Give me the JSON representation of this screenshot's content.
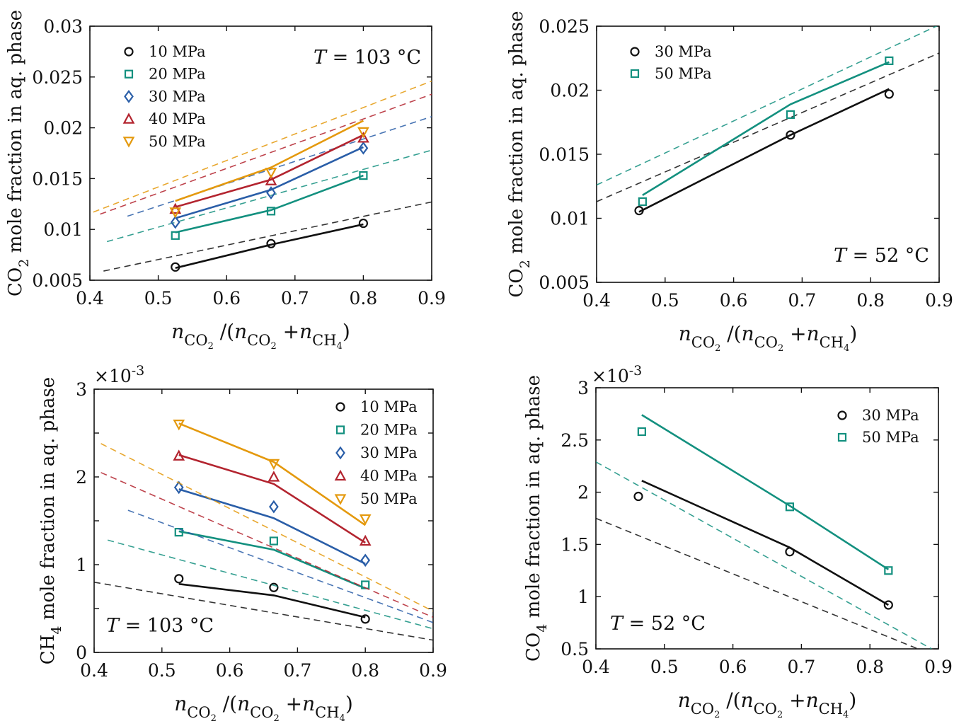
{
  "colors": {
    "10 MPa": "#111111",
    "20 MPa": "#13907f",
    "30 MPa": "#2a5ea8",
    "40 MPa": "#b3242f",
    "50 MPa": "#e4990d"
  },
  "chart_data": [
    {
      "id": "co2-103",
      "type": "line",
      "ylabel": "CO2 mole fraction in aq. phase",
      "ylabel_parts": {
        "pre": "CO",
        "sub": "2",
        "post": " mole fraction in aq. phase"
      },
      "xlabel": "nCO2/(nCO2+nCH4)",
      "xlim": [
        0.4,
        0.9
      ],
      "ylim": [
        0.005,
        0.03
      ],
      "xticks": [
        "0.4",
        "0.5",
        "0.6",
        "0.7",
        "0.8",
        "0.9"
      ],
      "yticks": [
        "0.005",
        "0.01",
        "0.015",
        "0.02",
        "0.025",
        "0.03"
      ],
      "multiplier": "",
      "annotation": "T = 103 °C",
      "legend_position": "top-left",
      "series": [
        {
          "name": "10 MPa",
          "color": "#111111",
          "marker": "circle",
          "points": [
            [
              0.525,
              0.0063
            ],
            [
              0.665,
              0.0086
            ],
            [
              0.8,
              0.0106
            ]
          ],
          "model": [
            [
              0.525,
              0.0062
            ],
            [
              0.665,
              0.0085
            ],
            [
              0.8,
              0.0105
            ]
          ],
          "dashed": [
            [
              0.42,
              0.0059
            ],
            [
              0.9,
              0.0127
            ]
          ]
        },
        {
          "name": "20 MPa",
          "color": "#13907f",
          "marker": "square",
          "points": [
            [
              0.525,
              0.0094
            ],
            [
              0.665,
              0.0118
            ],
            [
              0.8,
              0.0153
            ]
          ],
          "model": [
            [
              0.525,
              0.0097
            ],
            [
              0.665,
              0.0119
            ],
            [
              0.8,
              0.0153
            ]
          ],
          "dashed": [
            [
              0.425,
              0.0088
            ],
            [
              0.9,
              0.0178
            ]
          ]
        },
        {
          "name": "30 MPa",
          "color": "#2a5ea8",
          "marker": "diamond",
          "points": [
            [
              0.525,
              0.0107
            ],
            [
              0.665,
              0.0136
            ],
            [
              0.8,
              0.018
            ]
          ],
          "model": [
            [
              0.525,
              0.0111
            ],
            [
              0.665,
              0.0139
            ],
            [
              0.8,
              0.0181
            ]
          ],
          "dashed": [
            [
              0.455,
              0.0113
            ],
            [
              0.9,
              0.0211
            ]
          ]
        },
        {
          "name": "40 MPa",
          "color": "#b3242f",
          "marker": "triangle-up",
          "points": [
            [
              0.525,
              0.012
            ],
            [
              0.665,
              0.0148
            ],
            [
              0.8,
              0.019
            ]
          ],
          "model": [
            [
              0.525,
              0.0122
            ],
            [
              0.665,
              0.0149
            ],
            [
              0.8,
              0.0193
            ]
          ],
          "dashed": [
            [
              0.415,
              0.0115
            ],
            [
              0.9,
              0.0233
            ]
          ]
        },
        {
          "name": "50 MPa",
          "color": "#e4990d",
          "marker": "triangle-down",
          "points": [
            [
              0.525,
              0.0117
            ],
            [
              0.665,
              0.0156
            ],
            [
              0.8,
              0.0196
            ]
          ],
          "model": [
            [
              0.525,
              0.0128
            ],
            [
              0.665,
              0.0161
            ],
            [
              0.8,
              0.0207
            ]
          ],
          "dashed": [
            [
              0.405,
              0.0117
            ],
            [
              0.9,
              0.0246
            ]
          ]
        }
      ]
    },
    {
      "id": "co2-52",
      "type": "line",
      "ylabel": "CO2 mole fraction in aq. phase",
      "ylabel_parts": {
        "pre": "CO",
        "sub": "2",
        "post": " mole fraction in aq. phase"
      },
      "xlabel": "nCO2/(nCO2+nCH4)",
      "xlim": [
        0.4,
        0.9
      ],
      "ylim": [
        0.005,
        0.025
      ],
      "xticks": [
        "0.4",
        "0.5",
        "0.6",
        "0.7",
        "0.8",
        "0.9"
      ],
      "yticks": [
        "0.005",
        "0.01",
        "0.015",
        "0.02",
        "0.025"
      ],
      "multiplier": "",
      "annotation": "T = 52 °C",
      "legend_position": "top-left",
      "series": [
        {
          "name": "30 MPa",
          "color": "#111111",
          "marker": "circle",
          "points": [
            [
              0.462,
              0.0106
            ],
            [
              0.683,
              0.0165
            ],
            [
              0.827,
              0.0197
            ]
          ],
          "model": [
            [
              0.462,
              0.0105
            ],
            [
              0.683,
              0.0165
            ],
            [
              0.827,
              0.0201
            ]
          ],
          "dashed": [
            [
              0.4,
              0.0113
            ],
            [
              0.9,
              0.0229
            ]
          ]
        },
        {
          "name": "50 MPa",
          "color": "#13907f",
          "marker": "square",
          "points": [
            [
              0.467,
              0.0113
            ],
            [
              0.683,
              0.0181
            ],
            [
              0.827,
              0.0223
            ]
          ],
          "model": [
            [
              0.467,
              0.0118
            ],
            [
              0.683,
              0.0189
            ],
            [
              0.827,
              0.0222
            ]
          ],
          "dashed": [
            [
              0.4,
              0.0126
            ],
            [
              0.9,
              0.0251
            ]
          ]
        }
      ]
    },
    {
      "id": "ch4-103",
      "type": "line",
      "ylabel": "CH4 mole fraction in aq. phase",
      "ylabel_parts": {
        "pre": "CH",
        "sub": "4",
        "post": " mole fraction in aq. phase"
      },
      "xlabel": "nCO2/(nCO2+nCH4)",
      "xlim": [
        0.4,
        0.9
      ],
      "ylim": [
        0,
        3
      ],
      "xticks": [
        "0.4",
        "0.5",
        "0.6",
        "0.7",
        "0.8",
        "0.9"
      ],
      "yticks": [
        "0",
        "0.5",
        "1",
        "1.5",
        "2",
        "2.5",
        "3"
      ],
      "ytick_show": [
        "0",
        "",
        "1",
        "",
        "2",
        "",
        "3"
      ],
      "multiplier": "×10",
      "multiplier_exp": "-3",
      "annotation": "T = 103 °C",
      "legend_position": "top-right",
      "series": [
        {
          "name": "10 MPa",
          "color": "#111111",
          "marker": "circle",
          "points": [
            [
              0.525,
              0.84
            ],
            [
              0.665,
              0.74
            ],
            [
              0.8,
              0.38
            ]
          ],
          "model": [
            [
              0.525,
              0.78
            ],
            [
              0.665,
              0.65
            ],
            [
              0.8,
              0.4
            ]
          ],
          "dashed": [
            [
              0.4,
              0.8
            ],
            [
              0.9,
              0.14
            ]
          ]
        },
        {
          "name": "20 MPa",
          "color": "#13907f",
          "marker": "square",
          "points": [
            [
              0.525,
              1.37
            ],
            [
              0.665,
              1.27
            ],
            [
              0.8,
              0.77
            ]
          ],
          "model": [
            [
              0.525,
              1.38
            ],
            [
              0.665,
              1.17
            ],
            [
              0.8,
              0.73
            ]
          ],
          "dashed": [
            [
              0.42,
              1.28
            ],
            [
              0.9,
              0.27
            ]
          ]
        },
        {
          "name": "30 MPa",
          "color": "#2a5ea8",
          "marker": "diamond",
          "points": [
            [
              0.525,
              1.88
            ],
            [
              0.665,
              1.66
            ],
            [
              0.8,
              1.05
            ]
          ],
          "model": [
            [
              0.525,
              1.86
            ],
            [
              0.665,
              1.53
            ],
            [
              0.8,
              1.01
            ]
          ],
          "dashed": [
            [
              0.45,
              1.62
            ],
            [
              0.9,
              0.34
            ]
          ]
        },
        {
          "name": "40 MPa",
          "color": "#b3242f",
          "marker": "triangle-up",
          "points": [
            [
              0.525,
              2.24
            ],
            [
              0.665,
              2.0
            ],
            [
              0.8,
              1.27
            ]
          ],
          "model": [
            [
              0.525,
              2.25
            ],
            [
              0.665,
              1.92
            ],
            [
              0.8,
              1.25
            ]
          ],
          "dashed": [
            [
              0.41,
              2.05
            ],
            [
              0.9,
              0.4
            ]
          ]
        },
        {
          "name": "50 MPa",
          "color": "#e4990d",
          "marker": "triangle-down",
          "points": [
            [
              0.525,
              2.6
            ],
            [
              0.665,
              2.15
            ],
            [
              0.8,
              1.52
            ]
          ],
          "model": [
            [
              0.525,
              2.61
            ],
            [
              0.665,
              2.17
            ],
            [
              0.8,
              1.45
            ]
          ],
          "dashed": [
            [
              0.41,
              2.38
            ],
            [
              0.9,
              0.47
            ]
          ]
        }
      ]
    },
    {
      "id": "ch4-52",
      "type": "line",
      "ylabel": "CO4 mole fraction in aq. phase",
      "ylabel_parts": {
        "pre": "CO",
        "sub": "4",
        "post": " mole fraction in aq. phase"
      },
      "xlabel": "nCO2/(nCO2+nCH4)",
      "xlim": [
        0.4,
        0.9
      ],
      "ylim": [
        0.5,
        3
      ],
      "xticks": [
        "0.4",
        "0.5",
        "0.6",
        "0.7",
        "0.8",
        "0.9"
      ],
      "yticks": [
        "0.5",
        "1",
        "1.5",
        "2",
        "2.5",
        "3"
      ],
      "multiplier": "×10",
      "multiplier_exp": "-3",
      "annotation": "T = 52 °C",
      "legend_position": "top-right",
      "series": [
        {
          "name": "30 MPa",
          "color": "#111111",
          "marker": "circle",
          "points": [
            [
              0.462,
              1.96
            ],
            [
              0.683,
              1.43
            ],
            [
              0.827,
              0.92
            ]
          ],
          "model": [
            [
              0.467,
              2.11
            ],
            [
              0.683,
              1.47
            ],
            [
              0.827,
              0.92
            ]
          ],
          "dashed": [
            [
              0.4,
              1.75
            ],
            [
              0.87,
              0.5
            ]
          ]
        },
        {
          "name": "50 MPa",
          "color": "#13907f",
          "marker": "square",
          "points": [
            [
              0.467,
              2.58
            ],
            [
              0.683,
              1.86
            ],
            [
              0.827,
              1.25
            ]
          ],
          "model": [
            [
              0.467,
              2.74
            ],
            [
              0.683,
              1.87
            ],
            [
              0.827,
              1.26
            ]
          ],
          "dashed": [
            [
              0.4,
              2.29
            ],
            [
              0.89,
              0.5
            ]
          ]
        }
      ]
    }
  ]
}
